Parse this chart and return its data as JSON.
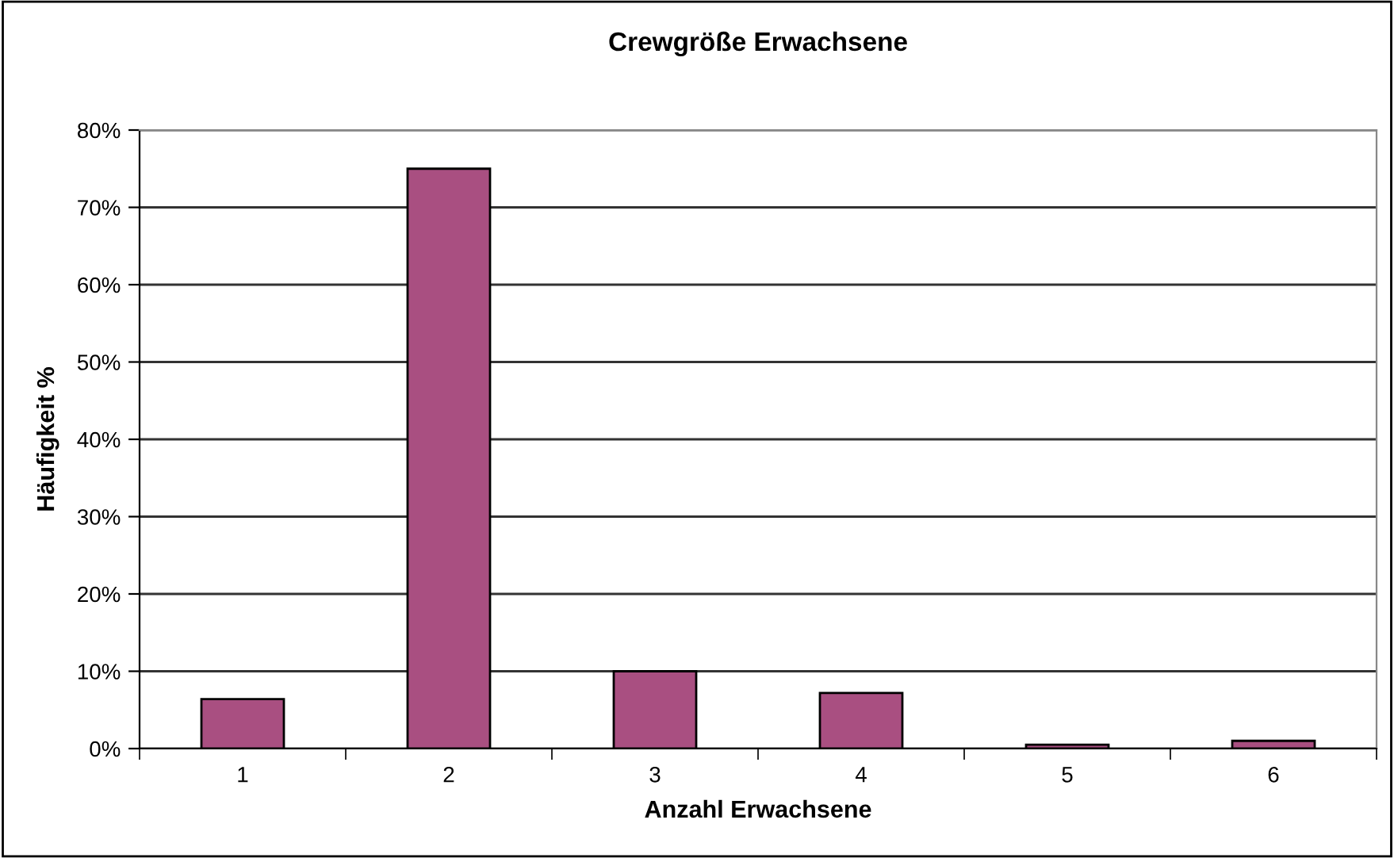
{
  "chart_data": {
    "type": "bar",
    "title": "Crewgröße Erwachsene",
    "xlabel": "Anzahl Erwachsene",
    "ylabel": "Häufigkeit %",
    "categories": [
      "1",
      "2",
      "3",
      "4",
      "5",
      "6"
    ],
    "values": [
      6.4,
      75,
      10,
      7.2,
      0.5,
      1.0
    ],
    "color": "#a94f81",
    "ylim": [
      0,
      80
    ],
    "yticks": [
      {
        "value": 0,
        "label": "0%"
      },
      {
        "value": 10,
        "label": "10%"
      },
      {
        "value": 20,
        "label": "20%"
      },
      {
        "value": 30,
        "label": "30%"
      },
      {
        "value": 40,
        "label": "40%"
      },
      {
        "value": 50,
        "label": "50%"
      },
      {
        "value": 60,
        "label": "60%"
      },
      {
        "value": 70,
        "label": "70%"
      },
      {
        "value": 80,
        "label": "80%"
      }
    ],
    "grid": "y",
    "legend": false
  }
}
